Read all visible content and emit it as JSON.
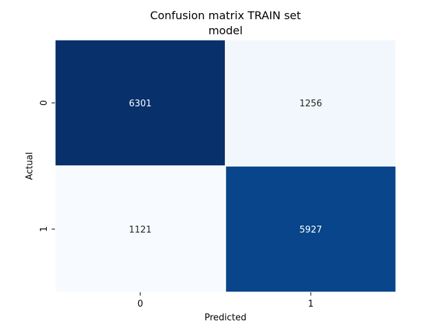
{
  "chart_data": {
    "type": "heatmap",
    "title": "Confusion matrix TRAIN set",
    "subtitle": "model",
    "xlabel": "Predicted",
    "ylabel": "Actual",
    "x_categories": [
      "0",
      "1"
    ],
    "y_categories": [
      "0",
      "1"
    ],
    "matrix": [
      [
        6301,
        1256
      ],
      [
        1121,
        5927
      ]
    ],
    "colormap": "Blues",
    "colorbar": false,
    "cell_colors": [
      [
        "#08306b",
        "#f2f7fd"
      ],
      [
        "#f7fbff",
        "#08458a"
      ]
    ],
    "annotation_colors": [
      [
        "#ffffff",
        "#262626"
      ],
      [
        "#262626",
        "#ffffff"
      ]
    ]
  }
}
